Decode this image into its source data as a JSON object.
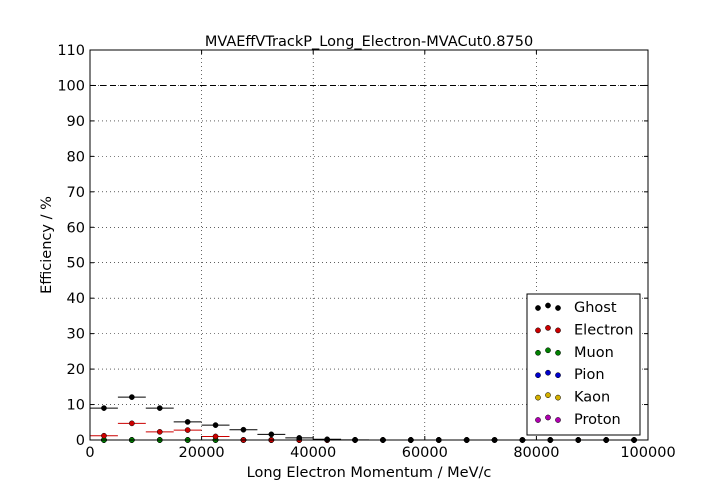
{
  "chart_data": {
    "type": "scatter",
    "title": "MVAEffVTrackP_Long_Electron-MVACut0.8750",
    "xlabel": "Long Electron Momentum / MeV/c",
    "ylabel": "Efficiency / %",
    "xlim": [
      0,
      100000
    ],
    "ylim": [
      0,
      110
    ],
    "xticks": [
      0,
      20000,
      40000,
      60000,
      80000,
      100000
    ],
    "yticks": [
      0,
      10,
      20,
      30,
      40,
      50,
      60,
      70,
      80,
      90,
      100,
      110
    ],
    "grid": true,
    "reference_line": 100,
    "legend_position": "lower-right",
    "bin_width": 5000,
    "x": [
      2500,
      7500,
      12500,
      17500,
      22500,
      27500,
      32500,
      37500,
      42500,
      47500,
      52500,
      57500,
      62500,
      67500,
      72500,
      77500,
      82500,
      87500,
      92500,
      97500
    ],
    "series": [
      {
        "name": "Ghost",
        "color": "#000000",
        "values": [
          9.0,
          12.1,
          9.0,
          5.1,
          4.2,
          2.9,
          1.6,
          0.6,
          0.2,
          0.05,
          0,
          0,
          0,
          0,
          0,
          0,
          0,
          0,
          0,
          0
        ]
      },
      {
        "name": "Electron",
        "color": "#cc0000",
        "values": [
          1.2,
          4.7,
          2.3,
          2.8,
          1.0,
          0,
          0,
          0,
          0,
          0,
          0,
          0,
          0,
          0,
          0,
          0,
          0,
          0,
          0,
          0
        ]
      },
      {
        "name": "Muon",
        "color": "#008000",
        "values": [
          0,
          0,
          0,
          0,
          0,
          0,
          0,
          0,
          0,
          0,
          0,
          0,
          0,
          0,
          0,
          0,
          0,
          0,
          0,
          0
        ]
      },
      {
        "name": "Pion",
        "color": "#0000cc",
        "values": [
          0,
          0,
          0,
          0,
          0,
          0,
          0,
          0,
          0,
          0,
          0,
          0,
          0,
          0,
          0,
          0,
          0,
          0,
          0,
          0
        ]
      },
      {
        "name": "Kaon",
        "color": "#d4b000",
        "values": [
          0,
          0,
          0,
          0,
          0,
          0,
          0,
          0,
          0,
          0,
          0,
          0,
          0,
          0,
          0,
          0,
          0,
          0,
          0,
          0
        ]
      },
      {
        "name": "Proton",
        "color": "#b000b0",
        "values": [
          0,
          0,
          0,
          0,
          0,
          0,
          0,
          0,
          0,
          0,
          0,
          0,
          0,
          0,
          0,
          0,
          0,
          0,
          0,
          0
        ]
      }
    ]
  }
}
